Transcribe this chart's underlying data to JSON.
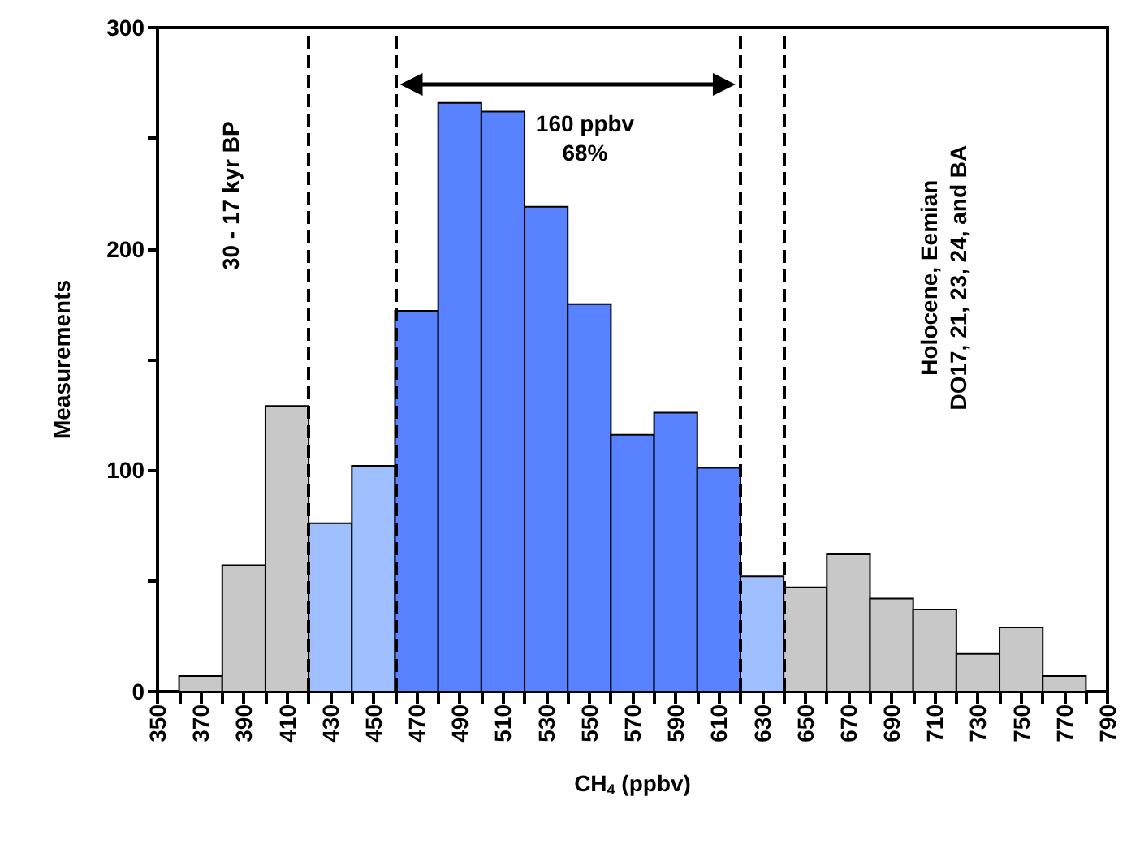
{
  "chart_data": {
    "type": "histogram",
    "xlabel": "CH$_{4}$ (ppbv)",
    "ylabel": "Measurements",
    "bins": [
      360,
      380,
      400,
      420,
      440,
      460,
      480,
      500,
      520,
      540,
      560,
      580,
      600,
      620,
      640,
      660,
      680,
      700,
      720,
      740,
      760,
      780
    ],
    "values": [
      7,
      57,
      129,
      76,
      102,
      172,
      266,
      262,
      219,
      175,
      116,
      126,
      101,
      52,
      47,
      62,
      42,
      37,
      17,
      29,
      7
    ],
    "colors": [
      "#c8c8c8",
      "#c8c8c8",
      "#c8c8c8",
      "#a0bfff",
      "#a0bfff",
      "#5882ff",
      "#5882ff",
      "#5882ff",
      "#5882ff",
      "#5882ff",
      "#5882ff",
      "#5882ff",
      "#5882ff",
      "#a0bfff",
      "#c8c8c8",
      "#c8c8c8",
      "#c8c8c8",
      "#c8c8c8",
      "#c8c8c8",
      "#c8c8c8",
      "#c8c8c8"
    ],
    "xlim": [
      350,
      790
    ],
    "xticks": [
      350,
      {
        "value": 360,
        "label": null
      },
      370,
      {
        "value": 380,
        "label": null
      },
      390,
      {
        "value": 400,
        "label": null
      },
      410,
      {
        "value": 420,
        "label": null
      },
      430,
      {
        "value": 440,
        "label": null
      },
      450,
      {
        "value": 460,
        "label": null
      },
      470,
      {
        "value": 480,
        "label": null
      },
      490,
      {
        "value": 500,
        "label": null
      },
      510,
      {
        "value": 520,
        "label": null
      },
      530,
      {
        "value": 540,
        "label": null
      },
      550,
      {
        "value": 560,
        "label": null
      },
      570,
      {
        "value": 580,
        "label": null
      },
      590,
      {
        "value": 600,
        "label": null
      },
      610,
      {
        "value": 620,
        "label": null
      },
      630,
      {
        "value": 640,
        "label": null
      },
      650,
      {
        "value": 660,
        "label": null
      },
      670,
      {
        "value": 680,
        "label": null
      },
      690,
      {
        "value": 700,
        "label": null
      },
      710,
      {
        "value": 720,
        "label": null
      },
      730,
      {
        "value": 740,
        "label": null
      },
      750,
      {
        "value": 760,
        "label": null
      },
      770,
      {
        "value": 780,
        "label": null
      },
      790
    ],
    "ylim": [
      0,
      300
    ],
    "yticks": [
      0,
      {
        "value": 50,
        "label": null
      },
      100,
      {
        "value": 150,
        "label": null
      },
      200,
      {
        "value": 250,
        "label": null
      },
      300
    ],
    "grid": false,
    "ref_lines": [
      {
        "axis": "x",
        "value": 420,
        "label": null,
        "color": "#000000",
        "line_style": "dashed"
      },
      {
        "axis": "x",
        "value": 460,
        "label": null,
        "color": "#000000",
        "line_style": "dashed"
      },
      {
        "axis": "x",
        "value": 620,
        "label": null,
        "color": "#000000",
        "line_style": "dashed"
      },
      {
        "axis": "x",
        "value": 640,
        "label": null,
        "color": "#000000",
        "line_style": "dashed"
      }
    ],
    "annotations": [
      "30 - 17 kyr BP",
      "160 ppbv\n68%",
      "Holocene, Eemian\nDO17, 21, 23, 24, and BA"
    ]
  }
}
